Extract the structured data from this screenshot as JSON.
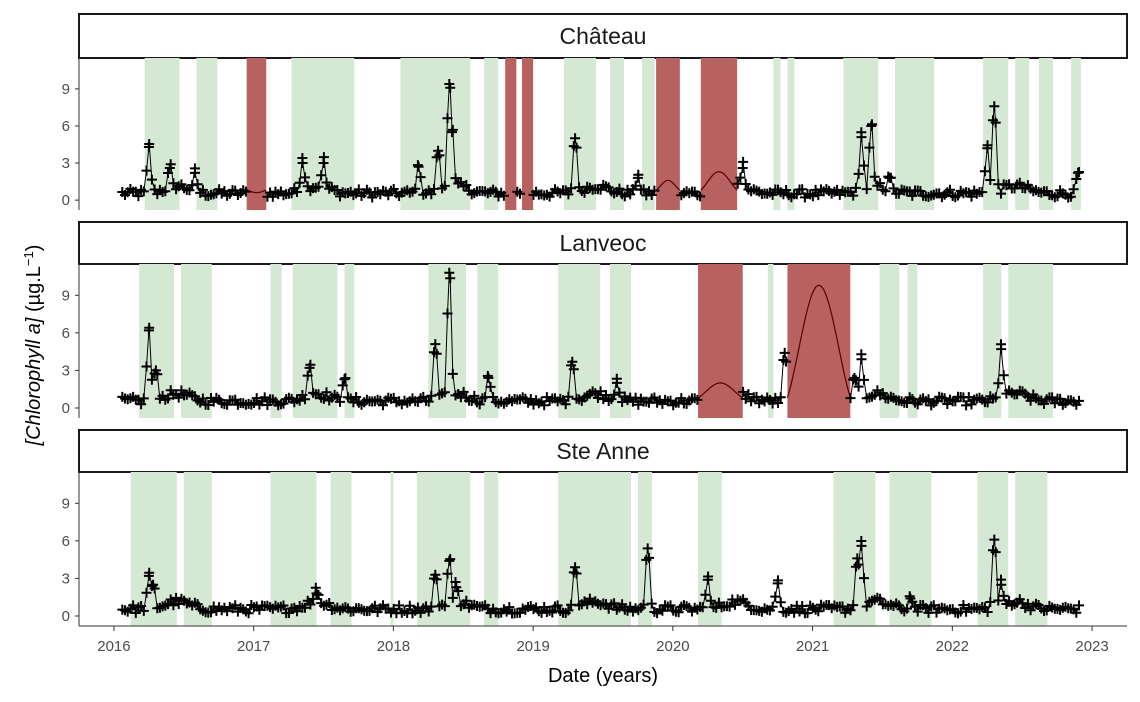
{
  "chart_data": {
    "type": "line",
    "xlabel": "Date (years)",
    "ylabel": "[Chlorophyll a] (µg.L⁻¹)",
    "xlim": [
      2015.75,
      2023.25
    ],
    "ylim": [
      -0.8,
      11.5
    ],
    "x_ticks": [
      2016,
      2017,
      2018,
      2019,
      2020,
      2021,
      2022,
      2023
    ],
    "y_ticks": [
      0,
      3,
      6,
      9
    ],
    "panels": [
      {
        "name": "Château",
        "green_bands": [
          [
            2016.22,
            2016.47
          ],
          [
            2016.59,
            2016.74
          ],
          [
            2017.27,
            2017.72
          ],
          [
            2018.05,
            2018.55
          ],
          [
            2018.65,
            2018.75
          ],
          [
            2019.22,
            2019.45
          ],
          [
            2019.55,
            2019.65
          ],
          [
            2019.78,
            2019.87
          ],
          [
            2020.72,
            2020.77
          ],
          [
            2020.82,
            2020.87
          ],
          [
            2021.22,
            2021.47
          ],
          [
            2021.59,
            2021.87
          ],
          [
            2022.22,
            2022.4
          ],
          [
            2022.45,
            2022.55
          ],
          [
            2022.62,
            2022.72
          ],
          [
            2022.85,
            2022.92
          ]
        ],
        "red_bands": [
          [
            2016.95,
            2017.09
          ],
          [
            2018.8,
            2018.88
          ],
          [
            2018.92,
            2019.0
          ],
          [
            2019.88,
            2020.05
          ],
          [
            2020.2,
            2020.46
          ]
        ],
        "spikes": [
          [
            2016.25,
            4.3
          ],
          [
            2016.4,
            2.6
          ],
          [
            2016.58,
            2.2
          ],
          [
            2017.35,
            3.0
          ],
          [
            2017.5,
            3.0
          ],
          [
            2018.18,
            2.7
          ],
          [
            2018.32,
            4.0
          ],
          [
            2018.4,
            9.4
          ],
          [
            2018.42,
            5.5
          ],
          [
            2019.3,
            5.0
          ],
          [
            2019.75,
            1.8
          ],
          [
            2020.5,
            2.6
          ],
          [
            2021.35,
            5.1
          ],
          [
            2021.42,
            6.0
          ],
          [
            2021.55,
            1.8
          ],
          [
            2022.3,
            7.6
          ],
          [
            2022.25,
            4.2
          ],
          [
            2022.9,
            2.2
          ]
        ],
        "gap_curves": [
          [
            2016.95,
            2017.09,
            0.6
          ],
          [
            2019.88,
            2020.05,
            1.6
          ],
          [
            2020.2,
            2020.46,
            2.3
          ]
        ]
      },
      {
        "name": "Lanveoc",
        "green_bands": [
          [
            2016.18,
            2016.43
          ],
          [
            2016.48,
            2016.7
          ],
          [
            2017.12,
            2017.2
          ],
          [
            2017.28,
            2017.6
          ],
          [
            2017.65,
            2017.72
          ],
          [
            2018.25,
            2018.52
          ],
          [
            2018.6,
            2018.75
          ],
          [
            2019.18,
            2019.48
          ],
          [
            2019.55,
            2019.7
          ],
          [
            2020.68,
            2020.72
          ],
          [
            2021.48,
            2021.62
          ],
          [
            2021.68,
            2021.75
          ],
          [
            2022.22,
            2022.35
          ],
          [
            2022.4,
            2022.72
          ]
        ],
        "red_bands": [
          [
            2020.18,
            2020.5
          ],
          [
            2020.82,
            2021.27
          ]
        ],
        "spikes": [
          [
            2016.25,
            6.2
          ],
          [
            2016.3,
            3.0
          ],
          [
            2017.4,
            3.2
          ],
          [
            2017.65,
            2.3
          ],
          [
            2018.3,
            5.1
          ],
          [
            2018.4,
            10.8
          ],
          [
            2018.68,
            2.4
          ],
          [
            2019.28,
            3.7
          ],
          [
            2019.6,
            2.0
          ],
          [
            2020.8,
            4.4
          ],
          [
            2021.35,
            3.9
          ],
          [
            2021.3,
            2.4
          ],
          [
            2022.35,
            4.7
          ]
        ],
        "gap_curves": [
          [
            2020.18,
            2020.5,
            2.0
          ],
          [
            2020.82,
            2021.27,
            9.8
          ]
        ]
      },
      {
        "name": "Ste Anne",
        "green_bands": [
          [
            2016.12,
            2016.45
          ],
          [
            2016.5,
            2016.7
          ],
          [
            2017.12,
            2017.45
          ],
          [
            2017.55,
            2017.7
          ],
          [
            2017.98,
            2018.0
          ],
          [
            2018.17,
            2018.55
          ],
          [
            2018.65,
            2018.75
          ],
          [
            2019.18,
            2019.7
          ],
          [
            2019.75,
            2019.85
          ],
          [
            2020.18,
            2020.35
          ],
          [
            2021.15,
            2021.45
          ],
          [
            2021.55,
            2021.85
          ],
          [
            2022.18,
            2022.4
          ],
          [
            2022.45,
            2022.68
          ]
        ],
        "red_bands": [],
        "spikes": [
          [
            2016.25,
            3.2
          ],
          [
            2016.28,
            2.5
          ],
          [
            2017.45,
            1.8
          ],
          [
            2018.3,
            3.3
          ],
          [
            2018.4,
            4.4
          ],
          [
            2018.45,
            2.3
          ],
          [
            2019.3,
            3.9
          ],
          [
            2019.82,
            5.4
          ],
          [
            2020.25,
            2.9
          ],
          [
            2020.75,
            2.6
          ],
          [
            2021.35,
            5.6
          ],
          [
            2021.32,
            4.6
          ],
          [
            2021.7,
            1.4
          ],
          [
            2022.3,
            6.1
          ],
          [
            2022.35,
            2.5
          ]
        ],
        "gap_curves": []
      }
    ]
  },
  "colors": {
    "green_band": "#d5e8d4",
    "red_band": "#b86161",
    "series": "#000000",
    "gap_curve": "#5a0000"
  }
}
